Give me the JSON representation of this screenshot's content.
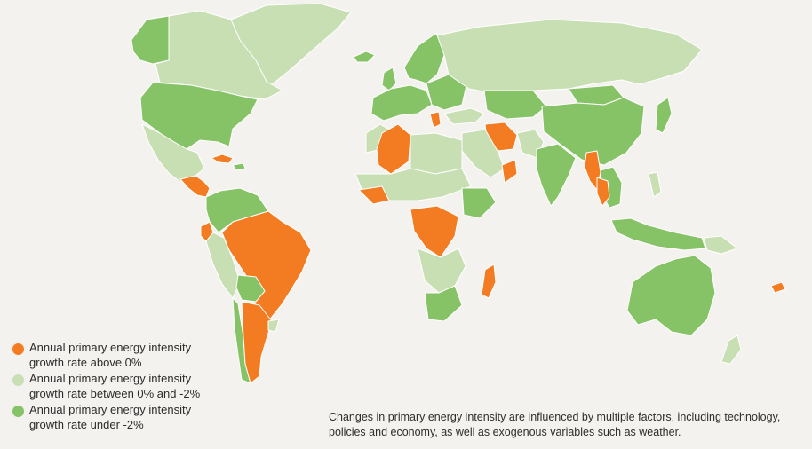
{
  "colors": {
    "ocean": "#f3f2ee",
    "above_zero": "#f37c22",
    "between": "#c7dfb3",
    "under_minus2": "#86c266",
    "border": "#ffffff"
  },
  "legend": {
    "items": [
      {
        "label": "Annual primary energy intensity\ngrowth rate above 0%",
        "color": "#f37c22"
      },
      {
        "label": "Annual primary energy intensity\ngrowth rate between 0% and -2%",
        "color": "#c7dfb3"
      },
      {
        "label": "Annual primary energy intensity\ngrowth rate under -2%",
        "color": "#86c266"
      }
    ]
  },
  "note": "Changes in primary energy intensity are influenced by multiple factors, including technology, policies and economy, as well as exogenous variables such as weather."
}
